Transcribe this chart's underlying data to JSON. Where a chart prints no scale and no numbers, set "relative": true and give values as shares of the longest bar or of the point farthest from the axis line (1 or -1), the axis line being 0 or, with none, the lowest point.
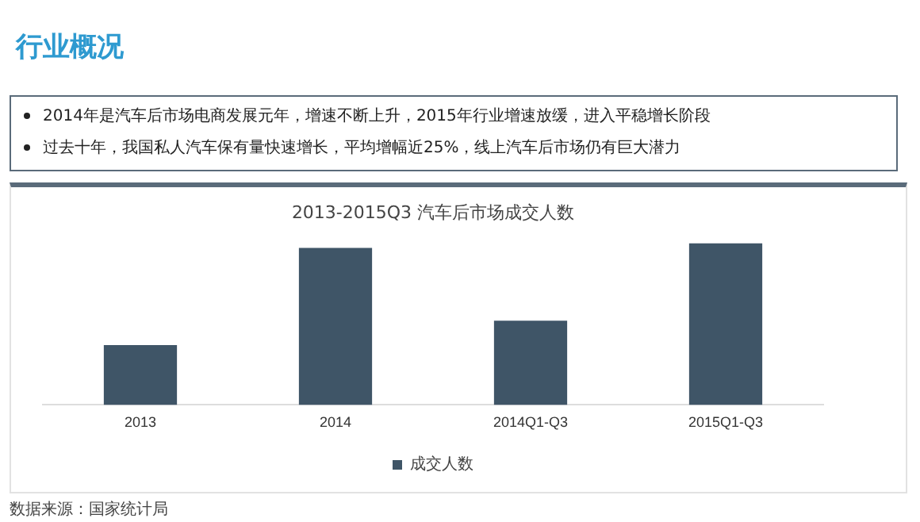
{
  "chart_data": {
    "type": "bar",
    "title": "2013-2015Q3 汽车后市场成交人数",
    "categories": [
      "2013",
      "2014",
      "2014Q1-Q3",
      "2015Q1-Q3"
    ],
    "series": [
      {
        "name": "成交人数",
        "color": "#3f5567",
        "values": [
          0.37,
          0.97,
          0.52,
          1
        ]
      }
    ],
    "relative": true,
    "grid": false,
    "legend": "bottom",
    "annotations": [
      "行业概况",
      "2014年是汽车后市场电商发展元年，增速不断上升，2015年行业增速放缓，进入平稳增长阶段",
      "过去十年，我国私人汽车保有量快速增长，平均增幅近25%，线上汽车后市场仍有巨大潜力",
      "数据来源：国家统计局"
    ]
  }
}
